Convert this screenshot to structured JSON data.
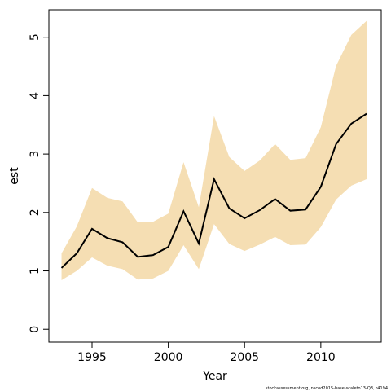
{
  "chart_data": {
    "type": "line",
    "xlabel": "Year",
    "ylabel": "est",
    "footnote": "stockassessment.org, nscod2015-base-scaleto13-Q3, r4194",
    "x": [
      1993,
      1994,
      1995,
      1996,
      1997,
      1998,
      1999,
      2000,
      2001,
      2002,
      2003,
      2004,
      2005,
      2006,
      2007,
      2008,
      2009,
      2010,
      2011,
      2012,
      2013
    ],
    "values": [
      1.05,
      1.3,
      1.72,
      1.56,
      1.49,
      1.24,
      1.27,
      1.41,
      2.02,
      1.47,
      2.57,
      2.07,
      1.9,
      2.04,
      2.23,
      2.03,
      2.05,
      2.44,
      3.17,
      3.52,
      3.69
    ],
    "lower": [
      0.84,
      1.0,
      1.23,
      1.09,
      1.03,
      0.85,
      0.87,
      1.0,
      1.44,
      1.03,
      1.8,
      1.46,
      1.34,
      1.45,
      1.58,
      1.44,
      1.45,
      1.75,
      2.22,
      2.46,
      2.57
    ],
    "upper": [
      1.3,
      1.76,
      2.42,
      2.25,
      2.19,
      1.83,
      1.84,
      1.98,
      2.86,
      2.09,
      3.65,
      2.95,
      2.71,
      2.89,
      3.17,
      2.9,
      2.93,
      3.46,
      4.51,
      5.04,
      5.28
    ],
    "color": "#000000",
    "band_color": "#f5deb3",
    "xlim": [
      1992.17,
      2013.96
    ],
    "ylim": [
      -0.22,
      5.47
    ],
    "xticks": [
      1995,
      2000,
      2005,
      2010
    ],
    "yticks": [
      0,
      1,
      2,
      3,
      4,
      5
    ]
  }
}
